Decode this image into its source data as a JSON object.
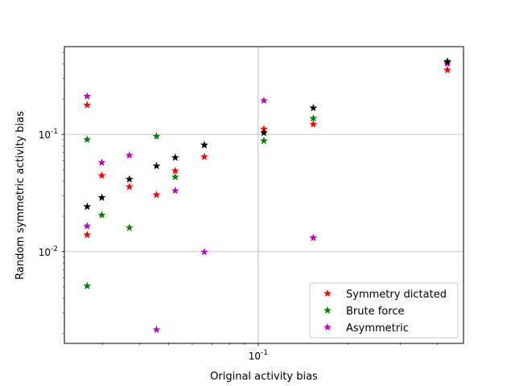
{
  "chart_data": {
    "type": "scatter",
    "xlabel": "Original activity bias",
    "ylabel": "Random symmetric activity bias",
    "x_scale": "log",
    "y_scale": "log",
    "xlim": [
      0.0223,
      0.49
    ],
    "ylim": [
      0.00165,
      0.56
    ],
    "x_ticks": [
      {
        "value": 0.1,
        "label": "10^-1"
      }
    ],
    "y_ticks": [
      {
        "value": 0.01,
        "label": "10^-2"
      },
      {
        "value": 0.1,
        "label": "10^-1"
      }
    ],
    "grid": true,
    "legend_position": "lower-right",
    "series": [
      {
        "name": "Symmetry dictated",
        "color": "#ff0000",
        "marker": "star",
        "x": [
          0.0266,
          0.0266,
          0.0298,
          0.0369,
          0.0455,
          0.0526,
          0.0659,
          0.1045,
          0.1532,
          0.4325
        ],
        "y": [
          0.178,
          0.0139,
          0.0446,
          0.0357,
          0.0305,
          0.0489,
          0.0643,
          0.111,
          0.122,
          0.354
        ]
      },
      {
        "name": "Brute force",
        "color": "#008000",
        "marker": "star",
        "x": [
          0.0266,
          0.0266,
          0.0298,
          0.0369,
          0.0455,
          0.0526,
          0.0659,
          0.1045,
          0.1532,
          0.4325
        ],
        "y": [
          0.0905,
          0.0051,
          0.0205,
          0.016,
          0.0963,
          0.0433,
          0.0811,
          0.0882,
          0.137,
          0.42
        ]
      },
      {
        "name": "Asymmetric",
        "color": "#bf00bf",
        "marker": "star",
        "x": [
          0.0266,
          0.0266,
          0.0298,
          0.0369,
          0.0455,
          0.0526,
          0.0659,
          0.1045,
          0.1532,
          0.4325
        ],
        "y": [
          0.211,
          0.0165,
          0.0575,
          0.0662,
          0.00216,
          0.0331,
          0.00993,
          0.194,
          0.0131,
          0.402
        ]
      },
      {
        "name": "",
        "color": "#000000",
        "marker": "star",
        "x": [
          0.0266,
          0.0298,
          0.0369,
          0.0455,
          0.0526,
          0.0659,
          0.1045,
          0.1532,
          0.4325
        ],
        "y": [
          0.0242,
          0.0289,
          0.0414,
          0.0538,
          0.0634,
          0.0811,
          0.103,
          0.168,
          0.415
        ]
      }
    ],
    "legend": {
      "entries": [
        "Symmetry dictated",
        "Brute force",
        "Asymmetric"
      ]
    }
  }
}
